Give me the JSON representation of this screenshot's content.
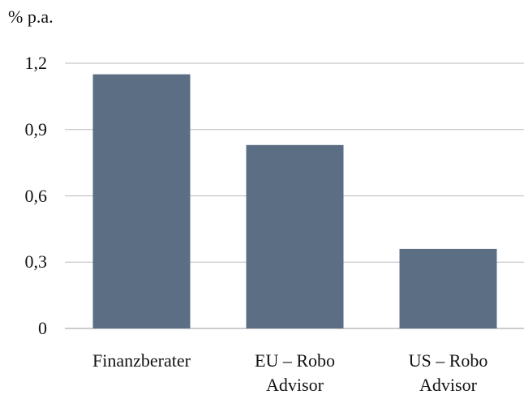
{
  "chart_data": {
    "type": "bar",
    "y_axis_label": "% p.a.",
    "categories": [
      "Finanzberater",
      "EU – Robo Advisor",
      "US – Robo Advisor"
    ],
    "values": [
      1.15,
      0.83,
      0.36
    ],
    "color": "#5b6e84",
    "ylim": [
      0,
      1.2
    ],
    "yticks": [
      0,
      {
        "value": 0.3,
        "label": "0,3"
      },
      {
        "value": 0.6,
        "label": "0,6"
      },
      {
        "value": 0.9,
        "label": "0,9"
      },
      {
        "value": 1.2,
        "label": "1,2"
      }
    ],
    "grid": true
  }
}
